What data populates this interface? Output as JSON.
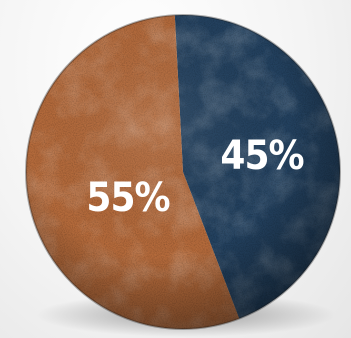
{
  "chart_data": {
    "type": "pie",
    "slices": [
      {
        "label": "55%",
        "value": 55,
        "color": "#b46a3b"
      },
      {
        "label": "45%",
        "value": 45,
        "color": "#23415f"
      }
    ],
    "title": "",
    "legend": "none"
  }
}
